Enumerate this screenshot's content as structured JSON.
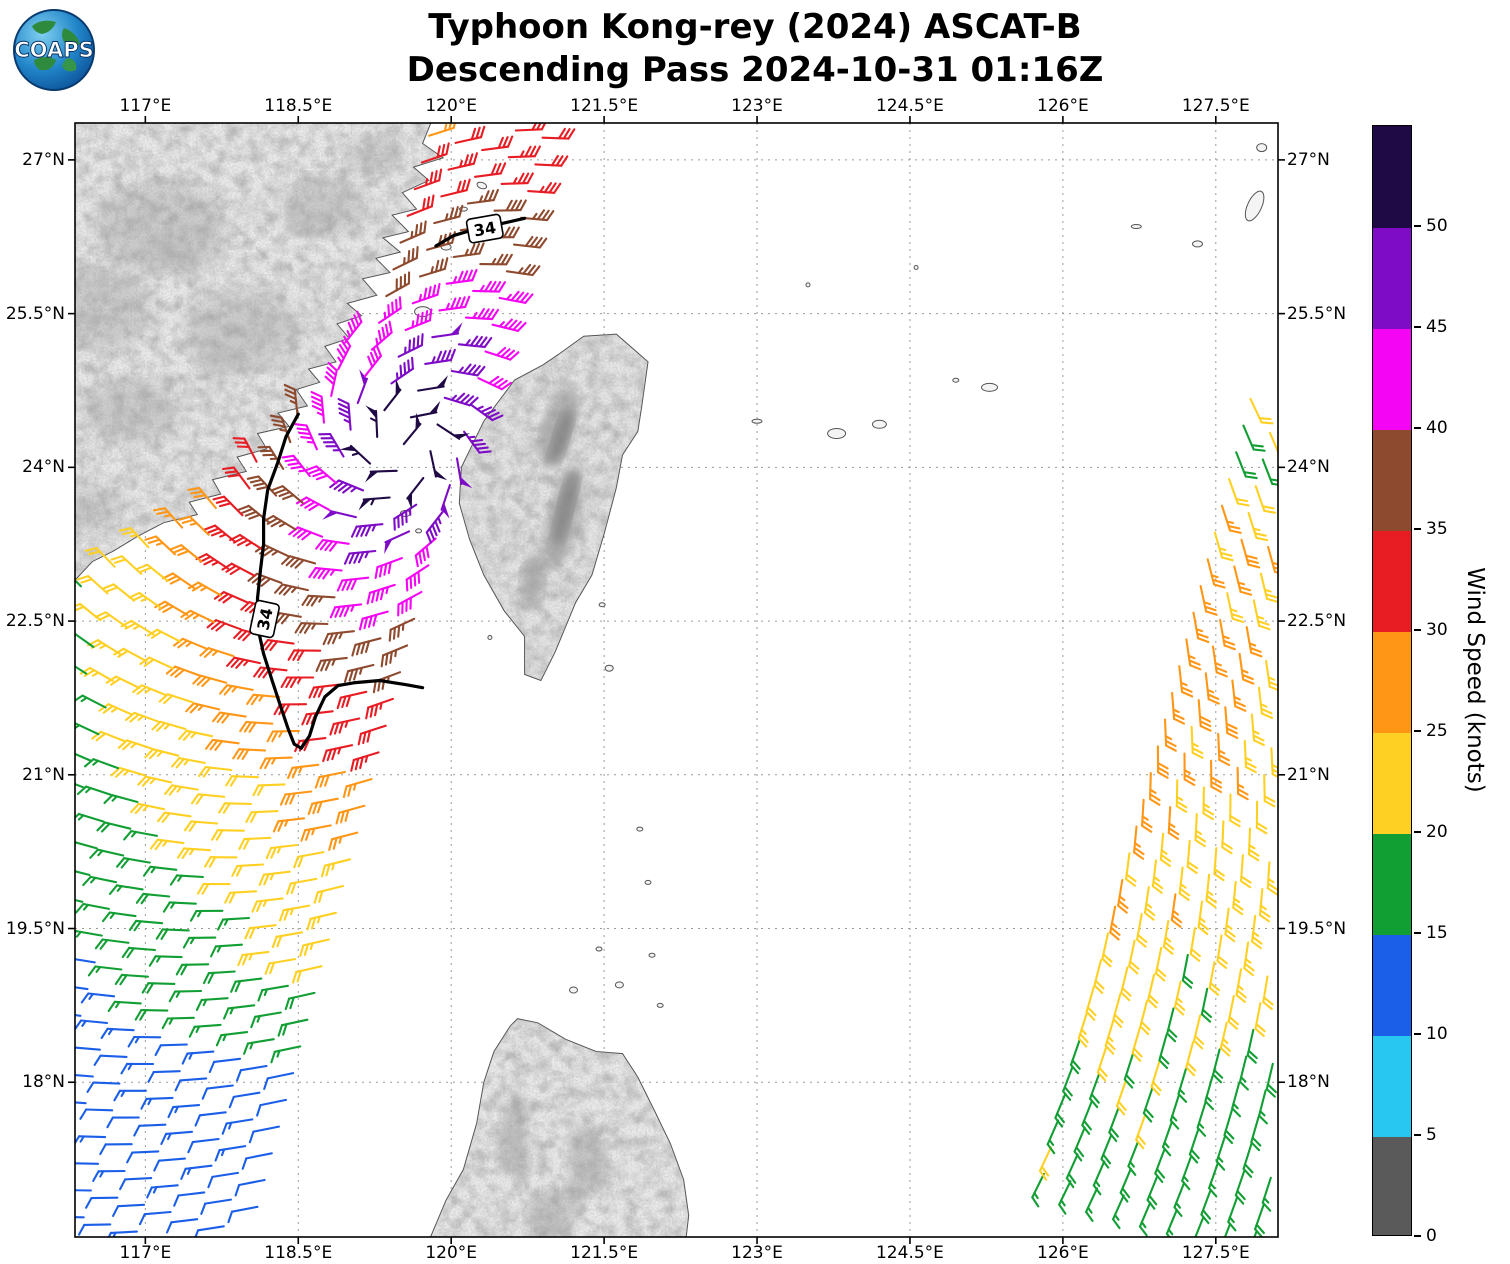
{
  "header": {
    "title_line1": "Typhoon Kong-rey (2024) ASCAT-B",
    "title_line2": "Descending Pass 2024-10-31 01:16Z",
    "logo_text": "COAPS"
  },
  "axes": {
    "lon_ticks": [
      {
        "value": 117,
        "label": "117°E"
      },
      {
        "value": 118.5,
        "label": "118.5°E"
      },
      {
        "value": 120,
        "label": "120°E"
      },
      {
        "value": 121.5,
        "label": "121.5°E"
      },
      {
        "value": 123,
        "label": "123°E"
      },
      {
        "value": 124.5,
        "label": "124.5°E"
      },
      {
        "value": 126,
        "label": "126°E"
      },
      {
        "value": 127.5,
        "label": "127.5°E"
      }
    ],
    "lat_ticks": [
      {
        "value": 27,
        "label": "27°N"
      },
      {
        "value": 25.5,
        "label": "25.5°N"
      },
      {
        "value": 24,
        "label": "24°N"
      },
      {
        "value": 22.5,
        "label": "22.5°N"
      },
      {
        "value": 21,
        "label": "21°N"
      },
      {
        "value": 19.5,
        "label": "19.5°N"
      },
      {
        "value": 18,
        "label": "18°N"
      }
    ]
  },
  "colorbar": {
    "label": "Wind Speed (knots)",
    "max": 55,
    "ticks": [
      0,
      5,
      10,
      15,
      20,
      25,
      30,
      35,
      40,
      45,
      50
    ],
    "segments": [
      {
        "from": 0,
        "to": 5,
        "color": "#5a5a5a"
      },
      {
        "from": 5,
        "to": 10,
        "color": "#27c7f2"
      },
      {
        "from": 10,
        "to": 15,
        "color": "#1b5ee8"
      },
      {
        "from": 15,
        "to": 20,
        "color": "#119e33"
      },
      {
        "from": 20,
        "to": 25,
        "color": "#ffd024"
      },
      {
        "from": 25,
        "to": 30,
        "color": "#ff9615"
      },
      {
        "from": 30,
        "to": 35,
        "color": "#e81c23"
      },
      {
        "from": 35,
        "to": 40,
        "color": "#8e4a2e"
      },
      {
        "from": 40,
        "to": 45,
        "color": "#f405f4"
      },
      {
        "from": 45,
        "to": 50,
        "color": "#7e0cc6"
      },
      {
        "from": 50,
        "to": 55,
        "color": "#200a45"
      }
    ]
  },
  "chart_data": {
    "type": "wind_barb_map",
    "title": "Typhoon Kong-rey (2024) ASCAT-B",
    "subtitle": "Descending Pass 2024-10-31 01:16Z",
    "lon_range": [
      116.31,
      128.11
    ],
    "lat_range": [
      16.49,
      27.36
    ],
    "storm": {
      "name": "Kong-rey",
      "center_lon": 119.55,
      "center_lat": 24.2,
      "inflow_deg": 22
    },
    "swaths": [
      {
        "id": "left",
        "side": "west",
        "edge_anchor_lon": 118.55,
        "edge_anchor_lat": 18,
        "tilt_deg": 15,
        "t_range": [
          -2.1,
          9.8
        ],
        "s_range": [
          0.12,
          6.85
        ],
        "spacing": 0.27,
        "speed_model": {
          "kind": "radial",
          "across_scale": 0.62,
          "along_north_scale": 0.92,
          "east_scale": 0.88,
          "east_limit": -0.2,
          "thresholds": [
            [
              0.55,
              52
            ],
            [
              0.95,
              47
            ],
            [
              1.5,
              42
            ],
            [
              2.1,
              37
            ],
            [
              2.8,
              32
            ],
            [
              3.5,
              27
            ],
            [
              4.7,
              22
            ],
            [
              6.2,
              17
            ],
            [
              999,
              12
            ]
          ],
          "low_band": {
            "lat0": 18.9,
            "slope": 0.25,
            "speed": 12
          },
          "jitter": 1.8
        }
      },
      {
        "id": "right",
        "side": "east",
        "edge_anchor_lon": 125.95,
        "edge_anchor_lat": 18,
        "tilt_deg": 15,
        "t_range": [
          -0.9,
          7.05
        ],
        "s_range": [
          0.1,
          2.6
        ],
        "spacing": 0.27,
        "speed_model": {
          "kind": "banded",
          "bands": [
            [
              23.8,
              99,
              21
            ],
            [
              21,
              23.8,
              26
            ],
            [
              19.5,
              21,
              24
            ],
            [
              18.5,
              19.5,
              22
            ],
            [
              -99,
              18.5,
              19
            ]
          ],
          "east_falloff": 0.8,
          "jitter": 2.4
        }
      }
    ],
    "contours": [
      {
        "level": "34",
        "points": [
          [
            118.5,
            24.52
          ],
          [
            118.38,
            24.3
          ],
          [
            118.3,
            24.05
          ],
          [
            118.2,
            23.78
          ],
          [
            118.16,
            23.5
          ],
          [
            118.16,
            23.25
          ],
          [
            118.13,
            23.0
          ],
          [
            118.1,
            22.72
          ],
          [
            118.1,
            22.45
          ],
          [
            118.16,
            22.18
          ],
          [
            118.25,
            21.9
          ],
          [
            118.33,
            21.66
          ],
          [
            118.4,
            21.45
          ],
          [
            118.46,
            21.3
          ],
          [
            118.53,
            21.26
          ],
          [
            118.61,
            21.38
          ],
          [
            118.67,
            21.57
          ],
          [
            118.76,
            21.76
          ],
          [
            118.89,
            21.87
          ],
          [
            119.06,
            21.9
          ],
          [
            119.3,
            21.92
          ],
          [
            119.55,
            21.88
          ],
          [
            119.72,
            21.85
          ]
        ],
        "labels": [
          {
            "lon": 118.17,
            "lat": 22.52,
            "rot": -78
          }
        ]
      },
      {
        "level": "34",
        "points": [
          [
            119.85,
            26.16
          ],
          [
            120.02,
            26.26
          ],
          [
            120.22,
            26.32
          ],
          [
            120.5,
            26.38
          ],
          [
            120.72,
            26.43
          ]
        ],
        "labels": [
          {
            "lon": 120.33,
            "lat": 26.33,
            "rot": -10
          }
        ]
      }
    ],
    "geo": {
      "china_coast_guide": [
        [
          22.95,
          116.31
        ],
        [
          23.2,
          116.95
        ],
        [
          23.7,
          117.64
        ],
        [
          24.2,
          118.08
        ],
        [
          24.7,
          118.5
        ],
        [
          25.1,
          118.8
        ],
        [
          25.6,
          119.06
        ],
        [
          26.1,
          119.4
        ],
        [
          26.6,
          119.55
        ],
        [
          27.45,
          119.78
        ]
      ],
      "china": [
        [
          116.31,
          27.36
        ],
        [
          119.8,
          27.36
        ],
        [
          119.72,
          27.16
        ],
        [
          119.92,
          27.02
        ],
        [
          119.63,
          26.93
        ],
        [
          119.78,
          26.8
        ],
        [
          119.52,
          26.68
        ],
        [
          119.66,
          26.52
        ],
        [
          119.42,
          26.46
        ],
        [
          119.58,
          26.3
        ],
        [
          119.33,
          26.24
        ],
        [
          119.5,
          26.1
        ],
        [
          119.26,
          26.04
        ],
        [
          119.4,
          25.9
        ],
        [
          119.13,
          25.84
        ],
        [
          119.27,
          25.68
        ],
        [
          118.98,
          25.6
        ],
        [
          119.12,
          25.48
        ],
        [
          118.88,
          25.4
        ],
        [
          119.0,
          25.26
        ],
        [
          118.76,
          25.18
        ],
        [
          118.87,
          25.03
        ],
        [
          118.6,
          24.96
        ],
        [
          118.71,
          24.83
        ],
        [
          118.48,
          24.76
        ],
        [
          118.59,
          24.6
        ],
        [
          118.3,
          24.53
        ],
        [
          118.41,
          24.4
        ],
        [
          118.1,
          24.33
        ],
        [
          118.19,
          24.18
        ],
        [
          117.9,
          24.1
        ],
        [
          117.99,
          23.96
        ],
        [
          117.66,
          23.88
        ],
        [
          117.74,
          23.74
        ],
        [
          117.43,
          23.66
        ],
        [
          117.51,
          23.54
        ],
        [
          117.18,
          23.46
        ],
        [
          116.93,
          23.33
        ],
        [
          116.68,
          23.18
        ],
        [
          116.48,
          23.08
        ],
        [
          116.31,
          22.9
        ]
      ],
      "taiwan": [
        [
          121.05,
          25.1
        ],
        [
          121.3,
          25.28
        ],
        [
          121.62,
          25.3
        ],
        [
          121.93,
          25.03
        ],
        [
          121.87,
          24.6
        ],
        [
          121.83,
          24.35
        ],
        [
          121.68,
          24.12
        ],
        [
          121.62,
          23.8
        ],
        [
          121.5,
          23.35
        ],
        [
          121.38,
          22.95
        ],
        [
          121.22,
          22.68
        ],
        [
          121.02,
          22.2
        ],
        [
          120.88,
          21.92
        ],
        [
          120.72,
          21.98
        ],
        [
          120.72,
          22.35
        ],
        [
          120.52,
          22.6
        ],
        [
          120.32,
          22.95
        ],
        [
          120.18,
          23.3
        ],
        [
          120.08,
          23.65
        ],
        [
          120.1,
          24.0
        ],
        [
          120.32,
          24.45
        ],
        [
          120.62,
          24.85
        ],
        [
          120.9,
          25.0
        ]
      ],
      "luzon": [
        [
          119.78,
          16.45
        ],
        [
          119.95,
          16.85
        ],
        [
          120.12,
          17.15
        ],
        [
          120.25,
          17.6
        ],
        [
          120.32,
          18.0
        ],
        [
          120.42,
          18.3
        ],
        [
          120.58,
          18.55
        ],
        [
          120.65,
          18.62
        ],
        [
          120.85,
          18.58
        ],
        [
          121.12,
          18.42
        ],
        [
          121.42,
          18.3
        ],
        [
          121.68,
          18.28
        ],
        [
          121.83,
          18.05
        ],
        [
          121.98,
          17.75
        ],
        [
          122.15,
          17.4
        ],
        [
          122.28,
          17.05
        ],
        [
          122.33,
          16.7
        ],
        [
          122.3,
          16.45
        ]
      ],
      "islands": [
        [
          119.95,
          26.15,
          5,
          3,
          0
        ],
        [
          120.12,
          26.52,
          4,
          2,
          0
        ],
        [
          120.3,
          26.75,
          5,
          3,
          20
        ],
        [
          119.72,
          25.52,
          8,
          5,
          0
        ],
        [
          119.55,
          23.55,
          5,
          3,
          0
        ],
        [
          119.68,
          23.38,
          3,
          2,
          0
        ],
        [
          126.72,
          26.35,
          5,
          2,
          0
        ],
        [
          127.32,
          26.18,
          5,
          3,
          0
        ],
        [
          127.88,
          26.55,
          7,
          16,
          25
        ],
        [
          127.95,
          27.12,
          5,
          4,
          0
        ],
        [
          125.28,
          24.78,
          8,
          4,
          0
        ],
        [
          124.95,
          24.85,
          3,
          2,
          0
        ],
        [
          124.2,
          24.42,
          7,
          4,
          0
        ],
        [
          123.78,
          24.33,
          9,
          5,
          0
        ],
        [
          123.0,
          24.45,
          5,
          2,
          0
        ],
        [
          123.5,
          25.78,
          2,
          2,
          0
        ],
        [
          124.56,
          25.95,
          2,
          2,
          0
        ],
        [
          121.48,
          22.66,
          3,
          2,
          0
        ],
        [
          121.55,
          22.04,
          4,
          3,
          0
        ],
        [
          120.38,
          22.34,
          2,
          2,
          0
        ],
        [
          121.85,
          20.47,
          3,
          2,
          0
        ],
        [
          121.93,
          19.95,
          3,
          2,
          0
        ],
        [
          121.45,
          19.3,
          3,
          2,
          0
        ],
        [
          121.2,
          18.9,
          4,
          3,
          0
        ],
        [
          121.65,
          18.95,
          4,
          3,
          0
        ],
        [
          121.97,
          19.24,
          3,
          2,
          0
        ],
        [
          122.05,
          18.75,
          3,
          2,
          0
        ]
      ],
      "china_shade": [
        [
          117.15,
          26.35,
          65,
          45
        ],
        [
          117.95,
          25.35,
          55,
          38
        ],
        [
          116.85,
          24.55,
          48,
          32
        ],
        [
          118.75,
          26.55,
          42,
          30
        ],
        [
          116.55,
          25.55,
          50,
          42
        ],
        [
          119.25,
          27.05,
          28,
          20
        ],
        [
          116.45,
          23.6,
          30,
          22
        ],
        [
          117.3,
          26.1,
          30,
          20
        ],
        [
          117.7,
          25.0,
          25,
          16
        ],
        [
          118.6,
          26.4,
          20,
          14
        ]
      ],
      "taiwan_shade": [
        [
          121.05,
          24.4,
          16,
          42,
          18
        ],
        [
          121.1,
          23.5,
          16,
          52,
          14
        ],
        [
          120.8,
          22.9,
          12,
          28,
          8
        ]
      ],
      "taiwan_ridge": [
        [
          121.08,
          24.3,
          8,
          30,
          18
        ],
        [
          121.12,
          23.6,
          8,
          40,
          14
        ]
      ],
      "luzon_shade": [
        [
          120.6,
          17.5,
          14,
          42,
          6
        ],
        [
          121.35,
          17.25,
          20,
          36,
          -8
        ],
        [
          120.95,
          16.7,
          22,
          26,
          0
        ],
        [
          120.7,
          17.2,
          8,
          26,
          5
        ],
        [
          121.2,
          16.9,
          10,
          20,
          0
        ]
      ]
    }
  }
}
